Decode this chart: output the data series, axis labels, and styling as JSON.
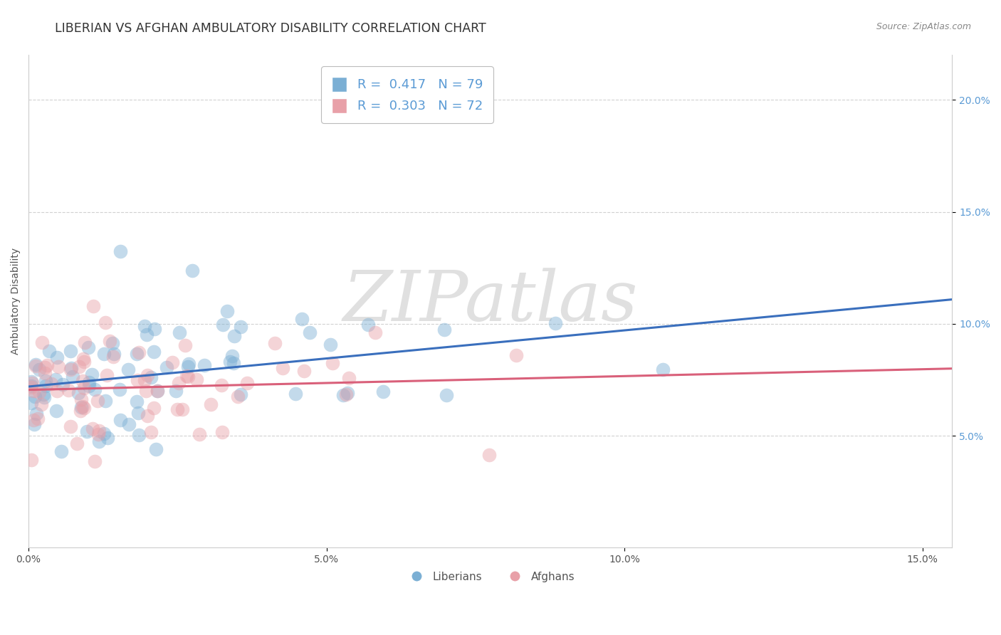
{
  "title": "LIBERIAN VS AFGHAN AMBULATORY DISABILITY CORRELATION CHART",
  "source": "Source: ZipAtlas.com",
  "ylabel": "Ambulatory Disability",
  "xlim": [
    0.0,
    15.5
  ],
  "ylim": [
    0.0,
    22.0
  ],
  "xticks": [
    0.0,
    5.0,
    10.0,
    15.0
  ],
  "yticks": [
    5.0,
    10.0,
    15.0,
    20.0
  ],
  "blue_color": "#7bafd4",
  "pink_color": "#e8a0a8",
  "blue_line_color": "#3a6fbd",
  "pink_line_color": "#d9607a",
  "legend_blue_label": "R =  0.417   N = 79",
  "legend_pink_label": "R =  0.303   N = 72",
  "liberian_label": "Liberians",
  "afghan_label": "Afghans",
  "watermark": "ZIPatlas",
  "title_fontsize": 12.5,
  "axis_label_fontsize": 10,
  "tick_fontsize": 10,
  "background_color": "#ffffff",
  "grid_color": "#cccccc",
  "tick_color": "#5b9bd5",
  "n_lib": 79,
  "n_afg": 72,
  "seed": 1234,
  "lib_x_scale": 2.2,
  "lib_y_intercept": 7.0,
  "lib_slope": 0.28,
  "lib_noise": 1.8,
  "afg_x_scale": 2.0,
  "afg_y_intercept": 6.5,
  "afg_slope": 0.2,
  "afg_noise": 1.6
}
